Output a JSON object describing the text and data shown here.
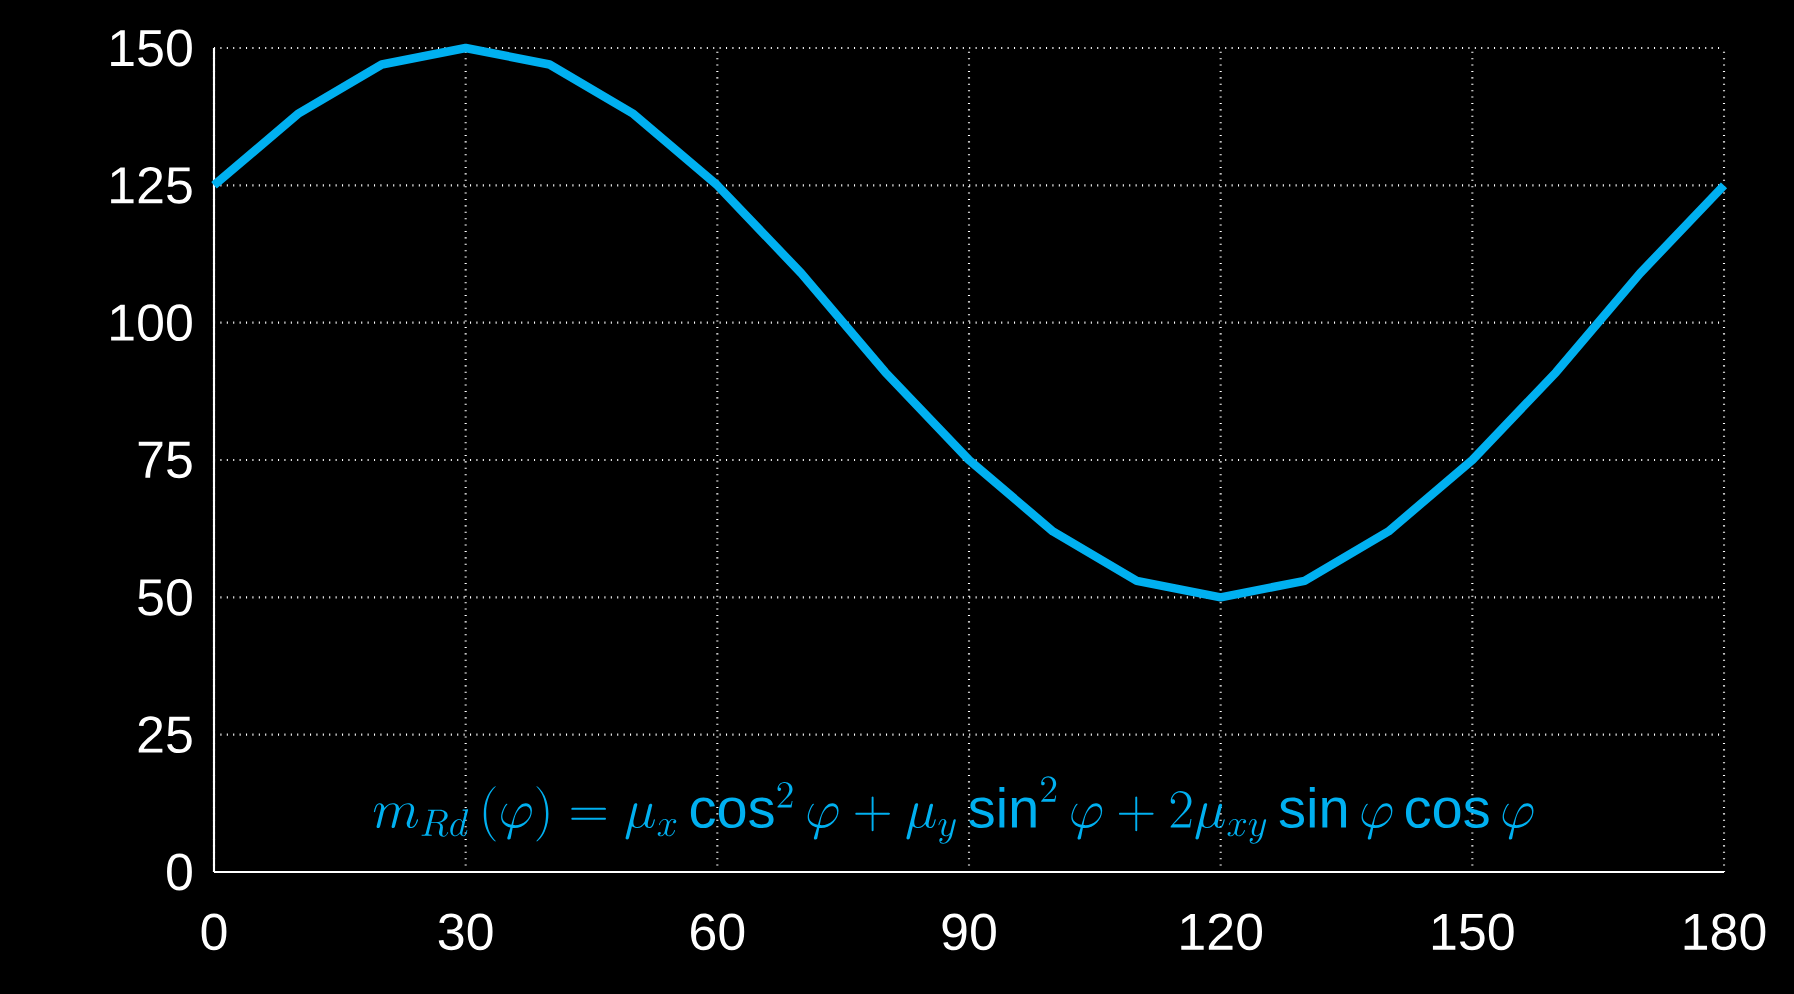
{
  "chart_data": {
    "type": "line",
    "x": [
      0,
      10,
      20,
      30,
      40,
      50,
      60,
      70,
      80,
      90,
      100,
      110,
      120,
      130,
      140,
      150,
      160,
      170,
      180
    ],
    "series": [
      {
        "color": "#00b0f0",
        "values": [
          125,
          138,
          147,
          150,
          147,
          138,
          125,
          109,
          91,
          75,
          62,
          53,
          50,
          53,
          62,
          75,
          91,
          109,
          125
        ]
      }
    ],
    "xlim": [
      0,
      180
    ],
    "xticks": [
      0,
      30,
      60,
      90,
      120,
      150,
      180
    ],
    "ylim": [
      0,
      150
    ],
    "yticks": [
      0,
      25,
      50,
      75,
      100,
      125,
      150
    ],
    "grid": true,
    "marker": "none",
    "line_style": "solid",
    "annotations": [
      "m_{Rd}\\left(\\varphi\\right)=\\mu_x\\cos^2\\varphi+\\mu_y\\sin^2\\varphi+2\\mu_{xy}\\sin\\varphi\\cos\\varphi"
    ]
  }
}
